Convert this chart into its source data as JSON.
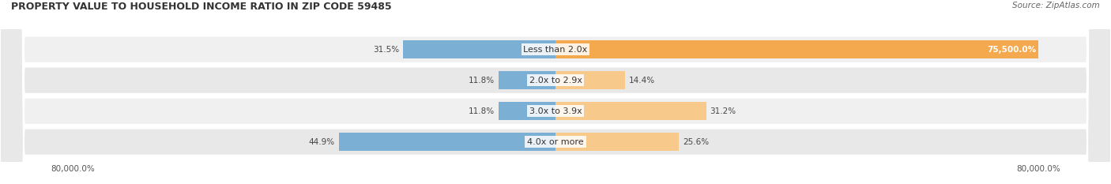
{
  "title": "PROPERTY VALUE TO HOUSEHOLD INCOME RATIO IN ZIP CODE 59485",
  "source": "Source: ZipAtlas.com",
  "categories": [
    "Less than 2.0x",
    "2.0x to 2.9x",
    "3.0x to 3.9x",
    "4.0x or more"
  ],
  "without_mortgage_pct": [
    31.5,
    11.8,
    11.8,
    44.9
  ],
  "with_mortgage_pct": [
    75500.0,
    14.4,
    31.2,
    25.6
  ],
  "without_mortgage_labels": [
    "31.5%",
    "11.8%",
    "11.8%",
    "44.9%"
  ],
  "with_mortgage_labels": [
    "75,500.0%",
    "14.4%",
    "31.2%",
    "25.6%"
  ],
  "color_without": "#7bafd4",
  "color_with": "#f5a94e",
  "color_with_light": "#f7c98a",
  "max_val": 80000,
  "bar_height": 0.6,
  "row_bg": [
    "#f0f0f0",
    "#e8e8e8",
    "#f0f0f0",
    "#e8e8e8"
  ],
  "title_fontsize": 9,
  "source_fontsize": 7.5,
  "label_fontsize": 7.5,
  "cat_fontsize": 8
}
